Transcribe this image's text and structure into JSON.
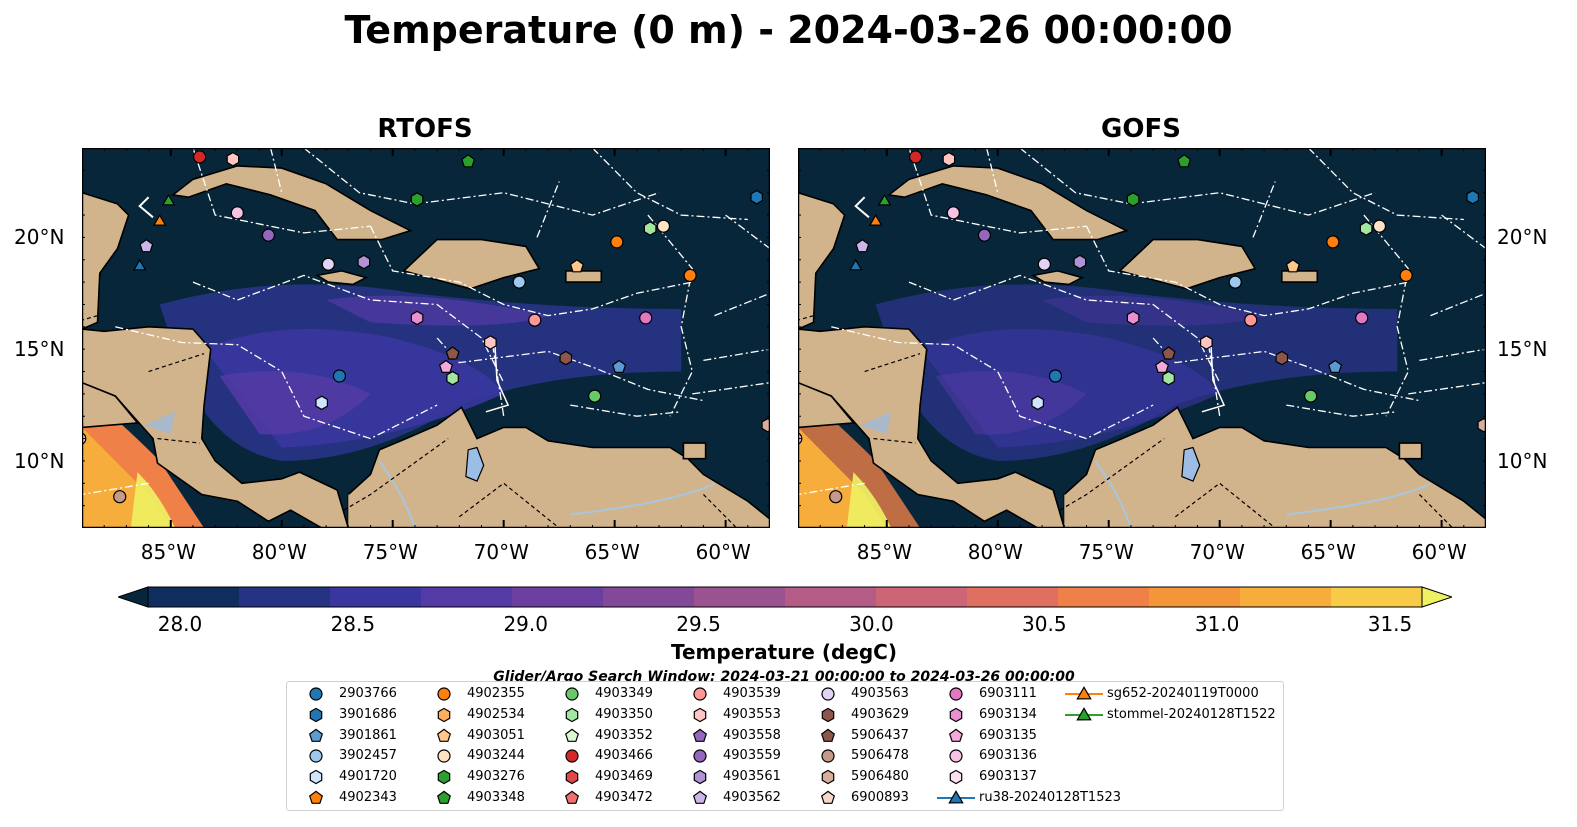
{
  "title": "Temperature (0 m) - 2024-03-26 00:00:00",
  "panels": [
    {
      "title": "RTOFS"
    },
    {
      "title": "GOFS"
    }
  ],
  "axes": {
    "lon_ticks": [
      "85°W",
      "80°W",
      "75°W",
      "70°W",
      "65°W",
      "60°W"
    ],
    "lat_ticks": [
      "20°N",
      "15°N",
      "10°N"
    ],
    "lon_range": [
      -89,
      -58
    ],
    "lat_range": [
      7,
      24
    ]
  },
  "colorbar": {
    "label": "Temperature (degC)",
    "ticks": [
      "28.0",
      "28.5",
      "29.0",
      "29.5",
      "30.0",
      "30.5",
      "31.0",
      "31.5"
    ],
    "range": [
      28.0,
      31.5
    ],
    "colors": [
      "#08263a",
      "#0f2e5e",
      "#263383",
      "#3a36a0",
      "#543aa5",
      "#6b3f9f",
      "#834898",
      "#9b5290",
      "#b45c86",
      "#cc6576",
      "#df7060",
      "#ee8048",
      "#f5953a",
      "#f7ad3c",
      "#f7cb48",
      "#eef262"
    ]
  },
  "search_window": "Glider/Argo Search Window: 2024-03-21 00:00:00 to 2024-03-26 00:00:00",
  "colors": {
    "land": "#d2b48c",
    "lake": "#9cbde6",
    "river": "#a8c6dd"
  },
  "legend": [
    {
      "label": "2903766",
      "marker": "circle",
      "color": "#1f77b4"
    },
    {
      "label": "3901686",
      "marker": "hexagon",
      "color": "#1f77b4"
    },
    {
      "label": "3901861",
      "marker": "pentagon",
      "color": "#5a9bd4"
    },
    {
      "label": "3902457",
      "marker": "circle",
      "color": "#9ec9ef"
    },
    {
      "label": "4901720",
      "marker": "hexagon",
      "color": "#cfe5fb"
    },
    {
      "label": "4902343",
      "marker": "pentagon",
      "color": "#ff7f0e"
    },
    {
      "label": "4902355",
      "marker": "circle",
      "color": "#ff7f0e"
    },
    {
      "label": "4902534",
      "marker": "hexagon",
      "color": "#ffae5e"
    },
    {
      "label": "4903051",
      "marker": "pentagon",
      "color": "#ffc78a"
    },
    {
      "label": "4903244",
      "marker": "circle",
      "color": "#ffe3c4"
    },
    {
      "label": "4903276",
      "marker": "hexagon",
      "color": "#2ca02c"
    },
    {
      "label": "4903348",
      "marker": "pentagon",
      "color": "#2ca02c"
    },
    {
      "label": "4903349",
      "marker": "circle",
      "color": "#67c967"
    },
    {
      "label": "4903350",
      "marker": "hexagon",
      "color": "#a2e6a2"
    },
    {
      "label": "4903352",
      "marker": "pentagon",
      "color": "#d9f7d0"
    },
    {
      "label": "4903466",
      "marker": "circle",
      "color": "#d62728"
    },
    {
      "label": "4903469",
      "marker": "hexagon",
      "color": "#e04848"
    },
    {
      "label": "4903472",
      "marker": "pentagon",
      "color": "#f07070"
    },
    {
      "label": "4903539",
      "marker": "circle",
      "color": "#ff9896"
    },
    {
      "label": "4903553",
      "marker": "hexagon",
      "color": "#ffc6c4"
    },
    {
      "label": "4903558",
      "marker": "pentagon",
      "color": "#9467bd"
    },
    {
      "label": "4903559",
      "marker": "circle",
      "color": "#9467bd"
    },
    {
      "label": "4903561",
      "marker": "hexagon",
      "color": "#b092d6"
    },
    {
      "label": "4903562",
      "marker": "pentagon",
      "color": "#cdb5ea"
    },
    {
      "label": "4903563",
      "marker": "circle",
      "color": "#e3d4f5"
    },
    {
      "label": "4903629",
      "marker": "hexagon",
      "color": "#8c564b"
    },
    {
      "label": "5906437",
      "marker": "pentagon",
      "color": "#8c564b"
    },
    {
      "label": "5906478",
      "marker": "circle",
      "color": "#c49a8a"
    },
    {
      "label": "5906480",
      "marker": "hexagon",
      "color": "#d9ad9c"
    },
    {
      "label": "6900893",
      "marker": "pentagon",
      "color": "#f5d6c8"
    },
    {
      "label": "6903111",
      "marker": "circle",
      "color": "#e377c2"
    },
    {
      "label": "6903134",
      "marker": "hexagon",
      "color": "#ea8fcf"
    },
    {
      "label": "6903135",
      "marker": "pentagon",
      "color": "#f3a9dc"
    },
    {
      "label": "6903136",
      "marker": "circle",
      "color": "#f7c2e6"
    },
    {
      "label": "6903137",
      "marker": "hexagon",
      "color": "#fbe0f2"
    },
    {
      "label": "ru38-20240128T1523",
      "marker": "triangle-line",
      "color": "#1f77b4"
    },
    {
      "label": "sg652-20240119T0000",
      "marker": "triangle-line",
      "color": "#ff7f0e"
    },
    {
      "label": "stommel-20240128T1522",
      "marker": "triangle-line",
      "color": "#2ca02c"
    }
  ],
  "markers": [
    {
      "id": "4903466",
      "lon": -83.7,
      "lat": 23.6
    },
    {
      "id": "4903553",
      "lon": -82.2,
      "lat": 23.5
    },
    {
      "id": "4903348",
      "lon": -71.6,
      "lat": 23.4
    },
    {
      "id": "3901686",
      "lon": -58.6,
      "lat": 21.8
    },
    {
      "id": "stommel-20240128T1522",
      "lon": -85.1,
      "lat": 21.6
    },
    {
      "id": "4903276",
      "lon": -73.9,
      "lat": 21.7
    },
    {
      "id": "6903136",
      "lon": -82.0,
      "lat": 21.1
    },
    {
      "id": "sg652-20240119T0000",
      "lon": -85.5,
      "lat": 20.7
    },
    {
      "id": "4903244",
      "lon": -62.8,
      "lat": 20.5
    },
    {
      "id": "4903350",
      "lon": -63.4,
      "lat": 20.4
    },
    {
      "id": "4903559",
      "lon": -80.6,
      "lat": 20.1
    },
    {
      "id": "4902355",
      "lon": -64.9,
      "lat": 19.8
    },
    {
      "id": "4903562",
      "lon": -86.1,
      "lat": 19.6
    },
    {
      "id": "4903563",
      "lon": -77.9,
      "lat": 18.8
    },
    {
      "id": "4903561",
      "lon": -76.3,
      "lat": 18.9
    },
    {
      "id": "ru38-20240128T1523",
      "lon": -86.4,
      "lat": 18.7
    },
    {
      "id": "4903051",
      "lon": -66.7,
      "lat": 18.7
    },
    {
      "id": "4902355b",
      "lon": -61.6,
      "lat": 18.3
    },
    {
      "id": "3902457",
      "lon": -69.3,
      "lat": 18.0
    },
    {
      "id": "6903134",
      "lon": -73.9,
      "lat": 16.4
    },
    {
      "id": "4903539",
      "lon": -68.6,
      "lat": 16.3
    },
    {
      "id": "6903111",
      "lon": -63.6,
      "lat": 16.4
    },
    {
      "id": "4903553b",
      "lon": -70.6,
      "lat": 15.3
    },
    {
      "id": "5906437",
      "lon": -72.3,
      "lat": 14.8
    },
    {
      "id": "4903629",
      "lon": -67.2,
      "lat": 14.6
    },
    {
      "id": "6903135",
      "lon": -72.6,
      "lat": 14.2
    },
    {
      "id": "3901861",
      "lon": -64.8,
      "lat": 14.2
    },
    {
      "id": "2903766",
      "lon": -77.4,
      "lat": 13.8
    },
    {
      "id": "4903350b",
      "lon": -72.3,
      "lat": 13.7
    },
    {
      "id": "4903349",
      "lon": -65.9,
      "lat": 12.9
    },
    {
      "id": "4901720",
      "lon": -78.2,
      "lat": 12.6
    },
    {
      "id": "6903136b",
      "lon": -89.1,
      "lat": 11.0
    },
    {
      "id": "5906478",
      "lon": -87.3,
      "lat": 8.4
    },
    {
      "id": "5906480b",
      "lon": -58.1,
      "lat": 11.6
    }
  ]
}
